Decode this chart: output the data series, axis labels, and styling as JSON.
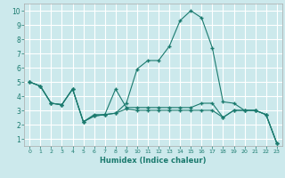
{
  "xlabel": "Humidex (Indice chaleur)",
  "bg_color": "#cce9ec",
  "grid_color": "#ffffff",
  "line_color": "#1a7a6e",
  "xlim": [
    -0.5,
    23.5
  ],
  "ylim": [
    0.5,
    10.5
  ],
  "xticks": [
    0,
    1,
    2,
    3,
    4,
    5,
    6,
    7,
    8,
    9,
    10,
    11,
    12,
    13,
    14,
    15,
    16,
    17,
    18,
    19,
    20,
    21,
    22,
    23
  ],
  "yticks": [
    1,
    2,
    3,
    4,
    5,
    6,
    7,
    8,
    9,
    10
  ],
  "line1_x": [
    0,
    1,
    2,
    3,
    4,
    5,
    6,
    7,
    8,
    9,
    10,
    11,
    12,
    13,
    14,
    15,
    16,
    17,
    18,
    19,
    20,
    21,
    22,
    23
  ],
  "line1_y": [
    5.0,
    4.7,
    3.5,
    3.4,
    4.5,
    2.2,
    2.6,
    2.7,
    2.8,
    3.5,
    5.9,
    6.5,
    6.5,
    7.5,
    9.3,
    10.0,
    9.5,
    7.4,
    3.6,
    3.5,
    3.0,
    3.0,
    2.7,
    0.7
  ],
  "line2_x": [
    0,
    1,
    2,
    3,
    4,
    5,
    6,
    7,
    8,
    9,
    10,
    11,
    12,
    13,
    14,
    15,
    16,
    17,
    18,
    19,
    20,
    21,
    22,
    23
  ],
  "line2_y": [
    5.0,
    4.7,
    3.5,
    3.4,
    4.5,
    2.2,
    2.6,
    2.7,
    4.5,
    3.2,
    3.2,
    3.2,
    3.2,
    3.2,
    3.2,
    3.2,
    3.5,
    3.5,
    2.5,
    3.0,
    3.0,
    3.0,
    2.7,
    0.7
  ],
  "line3_x": [
    0,
    1,
    2,
    3,
    4,
    5,
    6,
    7,
    8,
    9,
    10,
    11,
    12,
    13,
    14,
    15,
    16,
    17,
    18,
    19,
    20,
    21,
    22,
    23
  ],
  "line3_y": [
    5.0,
    4.7,
    3.5,
    3.4,
    4.5,
    2.2,
    2.7,
    2.7,
    2.8,
    3.1,
    3.0,
    3.0,
    3.0,
    3.0,
    3.0,
    3.0,
    3.0,
    3.0,
    2.5,
    3.0,
    3.0,
    3.0,
    2.7,
    0.7
  ]
}
